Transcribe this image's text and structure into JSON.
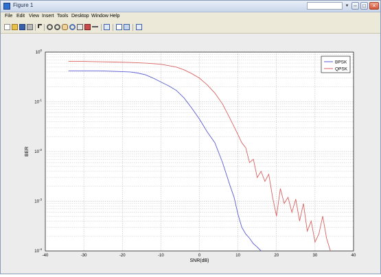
{
  "window": {
    "title": "Figure 1",
    "minimize_glyph": "–",
    "maximize_glyph": "□",
    "close_glyph": "×"
  },
  "menu": {
    "items": [
      "File",
      "Edit",
      "View",
      "Insert",
      "Tools",
      "Desktop",
      "Window",
      "Help"
    ]
  },
  "toolbar": {
    "icons": [
      "new-figure-icon",
      "open-file-icon",
      "save-icon",
      "print-icon",
      "edit-plot-icon",
      "zoom-in-icon",
      "zoom-out-icon",
      "pan-icon",
      "rotate-icon",
      "data-cursor-icon",
      "brush-icon",
      "link-icon",
      "colorbar-icon",
      "legend-icon",
      "hide-plot-tools-icon",
      "show-plot-tools-icon"
    ]
  },
  "chart_data": {
    "type": "line",
    "title": "",
    "xlabel": "SNR(dB)",
    "ylabel": "BER",
    "xlim": [
      -40,
      40
    ],
    "ylim": [
      0.0001,
      1
    ],
    "yscale": "log",
    "xticks": [
      -40,
      -30,
      -20,
      -10,
      0,
      10,
      20,
      30,
      40
    ],
    "yticks": [
      0.0001,
      0.001,
      0.01,
      0.1,
      1
    ],
    "ytick_labels": [
      "10^-4",
      "10^-3",
      "10^-2",
      "10^-1",
      "10^0"
    ],
    "grid": true,
    "legend_position": "top-right",
    "series": [
      {
        "name": "BPSK",
        "color": "#5a5ad2",
        "x": [
          -34,
          -30,
          -26,
          -22,
          -18,
          -16,
          -14,
          -12,
          -10,
          -8,
          -6,
          -4,
          -2,
          0,
          2,
          4,
          6,
          8,
          9,
          10,
          11,
          12,
          13,
          14,
          15,
          16
        ],
        "y": [
          0.42,
          0.42,
          0.42,
          0.41,
          0.4,
          0.38,
          0.35,
          0.3,
          0.25,
          0.21,
          0.17,
          0.12,
          0.075,
          0.045,
          0.025,
          0.015,
          0.006,
          0.002,
          0.0012,
          0.00055,
          0.0003,
          0.00022,
          0.00018,
          0.00014,
          0.00012,
          0.0001
        ]
      },
      {
        "name": "QPSK",
        "color": "#d96060",
        "x": [
          -34,
          -30,
          -26,
          -22,
          -18,
          -14,
          -10,
          -6,
          -4,
          -2,
          0,
          2,
          4,
          6,
          8,
          10,
          11,
          12,
          13,
          14,
          15,
          16,
          17,
          18,
          19,
          20,
          21,
          22,
          23,
          24,
          25,
          26,
          27,
          28,
          29,
          30,
          31,
          32,
          33,
          34
        ],
        "y": [
          0.65,
          0.65,
          0.64,
          0.63,
          0.62,
          0.6,
          0.57,
          0.5,
          0.44,
          0.37,
          0.3,
          0.22,
          0.15,
          0.09,
          0.045,
          0.022,
          0.015,
          0.012,
          0.006,
          0.007,
          0.003,
          0.004,
          0.0025,
          0.0035,
          0.0012,
          0.0005,
          0.0018,
          0.0009,
          0.0012,
          0.0006,
          0.0011,
          0.0004,
          0.0009,
          0.00025,
          0.0004,
          0.00015,
          0.00022,
          0.0005,
          0.00018,
          0.0001
        ]
      }
    ]
  }
}
